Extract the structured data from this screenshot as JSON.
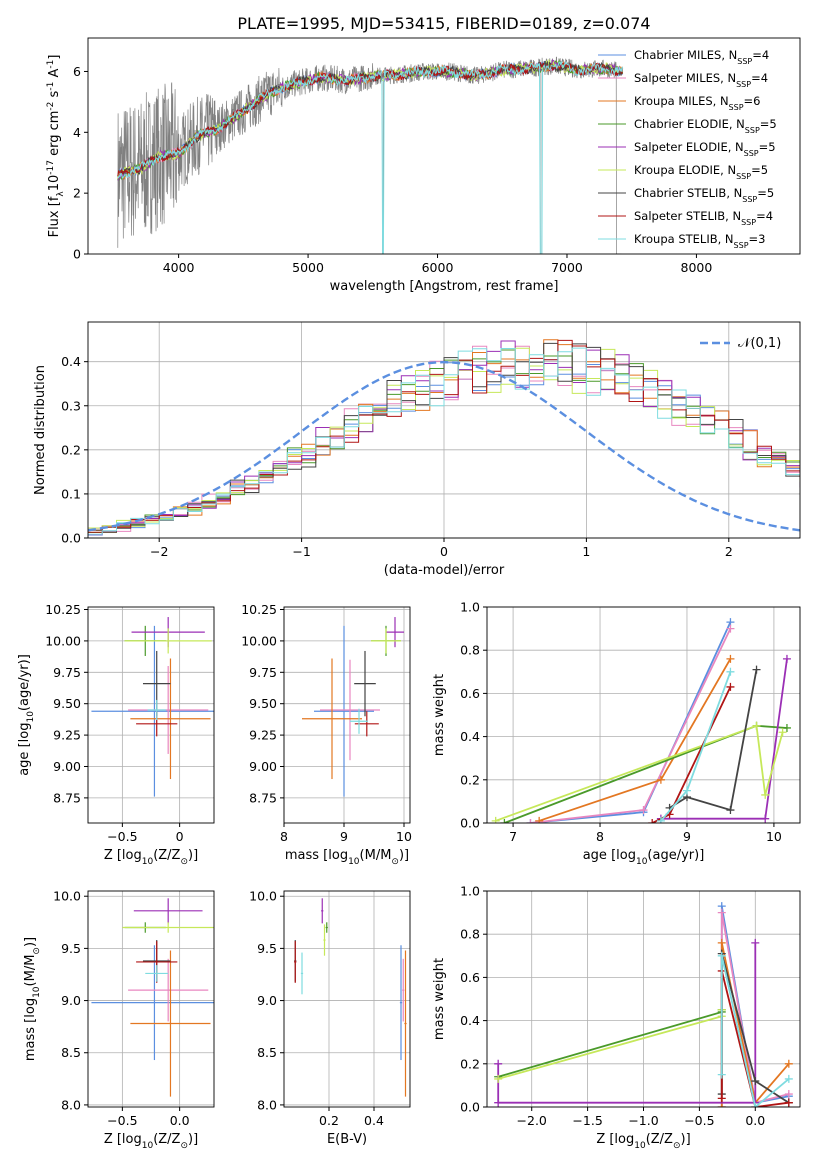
{
  "figure": {
    "title": "PLATE=1995, MJD=53415, FIBERID=0189, z=0.074"
  },
  "series_styles": [
    {
      "name": "Chabrier MILES, N$_{SSP}$=4",
      "label_main": "Chabrier MILES, N",
      "label_sub": "SSP",
      "label_tail": "=4",
      "color": "#5b8fe0"
    },
    {
      "name": "Salpeter MILES, N$_{SSP}$=4",
      "label_main": "Salpeter MILES, N",
      "label_sub": "SSP",
      "label_tail": "=4",
      "color": "#e887c0"
    },
    {
      "name": "Kroupa MILES, N$_{SSP}$=6",
      "label_main": "Kroupa MILES, N",
      "label_sub": "SSP",
      "label_tail": "=6",
      "color": "#e37722"
    },
    {
      "name": "Chabrier ELODIE, N$_{SSP}$=5",
      "label_main": "Chabrier ELODIE, N",
      "label_sub": "SSP",
      "label_tail": "=5",
      "color": "#4a9a2a"
    },
    {
      "name": "Salpeter ELODIE, N$_{SSP}$=5",
      "label_main": "Salpeter ELODIE, N",
      "label_sub": "SSP",
      "label_tail": "=5",
      "color": "#9b2fb5"
    },
    {
      "name": "Kroupa ELODIE, N$_{SSP}$=5",
      "label_main": "Kroupa ELODIE, N",
      "label_sub": "SSP",
      "label_tail": "=5",
      "color": "#c6e85a"
    },
    {
      "name": "Chabrier STELIB, N$_{SSP}$=5",
      "label_main": "Chabrier STELIB, N",
      "label_sub": "SSP",
      "label_tail": "=5",
      "color": "#444444"
    },
    {
      "name": "Salpeter STELIB, N$_{SSP}$=4",
      "label_main": "Salpeter STELIB, N",
      "label_sub": "SSP",
      "label_tail": "=4",
      "color": "#b01515"
    },
    {
      "name": "Kroupa STELIB, N$_{SSP}$=3",
      "label_main": "Kroupa STELIB, N",
      "label_sub": "SSP",
      "label_tail": "=3",
      "color": "#7fdce0"
    }
  ],
  "chart_data": [
    {
      "id": "spectrum",
      "type": "line",
      "xlabel": "wavelength [Angstrom, rest frame]",
      "ylabel": "Flux [f$_\\lambda$10$^{-17}$ erg cm$^{-2}$ s$^{-1}$ A$^{-1}$]",
      "xlim": [
        3300,
        8800
      ],
      "ylim": [
        0,
        7.1
      ],
      "xticks": [
        4000,
        5000,
        6000,
        7000,
        8000
      ],
      "yticks": [
        0,
        2,
        4,
        6
      ],
      "grid": false,
      "legend": "right",
      "data_color": "#808080",
      "model_points": {
        "x": [
          3530,
          3700,
          3850,
          4000,
          4150,
          4300,
          4500,
          4700,
          4900,
          5100,
          5300,
          5500,
          5700,
          5900,
          6100,
          6300,
          6500,
          6700,
          6900,
          7100,
          7300,
          7420
        ],
        "y": [
          2.6,
          2.8,
          3.2,
          3.3,
          3.9,
          4.1,
          4.7,
          5.3,
          5.6,
          5.8,
          5.7,
          5.85,
          5.9,
          6.0,
          6.0,
          5.85,
          6.05,
          6.1,
          6.2,
          6.05,
          6.1,
          6.0
        ]
      }
    },
    {
      "id": "residuals",
      "type": "histogram",
      "xlabel": "(data-model)/error",
      "ylabel": "Normed distribution",
      "xlim": [
        -2.5,
        2.5
      ],
      "ylim": [
        0,
        0.49
      ],
      "xticks": [
        -2,
        -1,
        0,
        1,
        2
      ],
      "yticks": [
        0.0,
        0.1,
        0.2,
        0.3,
        0.4
      ],
      "grid": true,
      "legend": "top-right",
      "bin_edges_start": -2.5,
      "bin_width": 0.1,
      "base_density": [
        0.018,
        0.022,
        0.027,
        0.033,
        0.04,
        0.048,
        0.057,
        0.068,
        0.08,
        0.093,
        0.108,
        0.123,
        0.14,
        0.157,
        0.175,
        0.194,
        0.213,
        0.232,
        0.251,
        0.27,
        0.288,
        0.306,
        0.322,
        0.337,
        0.351,
        0.363,
        0.374,
        0.383,
        0.39,
        0.395,
        0.398,
        0.399,
        0.398,
        0.395,
        0.39,
        0.383,
        0.374,
        0.363,
        0.351,
        0.337,
        0.322,
        0.306,
        0.288,
        0.27,
        0.251,
        0.232,
        0.213,
        0.194,
        0.175,
        0.157,
        0.14,
        0.123,
        0.108,
        0.093,
        0.08,
        0.068,
        0.057,
        0.048,
        0.04,
        0.033,
        0.027,
        0.022,
        0.018
      ],
      "gaussian_label": "$\\mathcal{N}(0,1)$"
    },
    {
      "id": "age-vs-Z",
      "type": "errorbar",
      "xlabel": "Z [log$_{10}$(Z/Z$_\\odot$)]",
      "ylabel": "age  [log$_{10}$(age/yr)]",
      "xlim": [
        -0.8,
        0.3
      ],
      "ylim": [
        8.55,
        10.27
      ],
      "xticks": [
        -0.5,
        0.0
      ],
      "yticks": [
        8.75,
        9.0,
        9.25,
        9.5,
        9.75,
        10.0,
        10.25
      ],
      "grid": true,
      "points": [
        {
          "x": -0.22,
          "y": 9.44,
          "xerr": 0.55,
          "yerr": 0.68
        },
        {
          "x": -0.1,
          "y": 9.45,
          "xerr": 0.35,
          "yerr": 0.35
        },
        {
          "x": -0.08,
          "y": 9.38,
          "xerr": 0.35,
          "yerr": 0.48
        },
        {
          "x": -0.3,
          "y": 10.0,
          "xerr": 0.18,
          "yerr": 0.12
        },
        {
          "x": -0.1,
          "y": 10.07,
          "xerr": 0.32,
          "yerr": 0.12
        },
        {
          "x": -0.1,
          "y": 10.0,
          "xerr": 0.38,
          "yerr": 0.1
        },
        {
          "x": -0.2,
          "y": 9.66,
          "xerr": 0.12,
          "yerr": 0.26
        },
        {
          "x": -0.2,
          "y": 9.34,
          "xerr": 0.18,
          "yerr": 0.1
        },
        {
          "x": -0.2,
          "y": 9.45,
          "xerr": 0.08,
          "yerr": 0.08
        }
      ]
    },
    {
      "id": "age-vs-mass",
      "type": "errorbar",
      "xlabel": "mass [log$_{10}$(M/M$_\\odot$)]",
      "ylabel": "",
      "xlim": [
        8.0,
        10.1
      ],
      "ylim": [
        8.55,
        10.27
      ],
      "xticks": [
        8,
        9,
        10
      ],
      "yticks": [
        8.75,
        9.0,
        9.25,
        9.5,
        9.75,
        10.0,
        10.25
      ],
      "grid": true,
      "points": [
        {
          "x": 9.0,
          "y": 9.44,
          "xerr": 0.5,
          "yerr": 0.68
        },
        {
          "x": 9.1,
          "y": 9.45,
          "xerr": 0.5,
          "yerr": 0.4
        },
        {
          "x": 8.8,
          "y": 9.38,
          "xerr": 0.5,
          "yerr": 0.48
        },
        {
          "x": 9.7,
          "y": 10.0,
          "xerr": 0.25,
          "yerr": 0.12
        },
        {
          "x": 9.85,
          "y": 10.07,
          "xerr": 0.15,
          "yerr": 0.12
        },
        {
          "x": 9.7,
          "y": 10.0,
          "xerr": 0.25,
          "yerr": 0.1
        },
        {
          "x": 9.35,
          "y": 9.66,
          "xerr": 0.18,
          "yerr": 0.26
        },
        {
          "x": 9.38,
          "y": 9.34,
          "xerr": 0.2,
          "yerr": 0.1
        },
        {
          "x": 9.25,
          "y": 9.36,
          "xerr": 0.15,
          "yerr": 0.1
        }
      ]
    },
    {
      "id": "weight-vs-age",
      "type": "line",
      "xlabel": "age  [log$_{10}$(age/yr)]",
      "ylabel": "mass weight",
      "xlim": [
        6.7,
        10.3
      ],
      "ylim": [
        0,
        1.0
      ],
      "xticks": [
        7,
        8,
        9,
        10
      ],
      "yticks": [
        0.0,
        0.2,
        0.4,
        0.6,
        0.8,
        1.0
      ],
      "grid": true,
      "lines": [
        {
          "x": [
            7.2,
            8.5,
            9.5
          ],
          "y": [
            0.0,
            0.05,
            0.93
          ]
        },
        {
          "x": [
            7.2,
            8.5,
            9.5
          ],
          "y": [
            0.0,
            0.06,
            0.9
          ]
        },
        {
          "x": [
            7.3,
            8.7,
            9.5
          ],
          "y": [
            0.01,
            0.2,
            0.76
          ]
        },
        {
          "x": [
            6.9,
            9.8,
            10.15
          ],
          "y": [
            0.0,
            0.45,
            0.44
          ]
        },
        {
          "x": [
            8.7,
            9.9,
            10.15
          ],
          "y": [
            0.02,
            0.02,
            0.76
          ]
        },
        {
          "x": [
            6.8,
            9.8,
            9.9,
            10.1
          ],
          "y": [
            0.01,
            0.45,
            0.13,
            0.42
          ]
        },
        {
          "x": [
            8.8,
            9.0,
            9.5,
            9.8
          ],
          "y": [
            0.07,
            0.12,
            0.06,
            0.71
          ]
        },
        {
          "x": [
            8.6,
            8.8,
            9.5
          ],
          "y": [
            0.0,
            0.04,
            0.63
          ]
        },
        {
          "x": [
            8.7,
            9.0,
            9.5
          ],
          "y": [
            0.01,
            0.15,
            0.7
          ]
        }
      ]
    },
    {
      "id": "mass-vs-Z",
      "type": "errorbar",
      "xlabel": "Z [log$_{10}$(Z/Z$_\\odot$)]",
      "ylabel": "mass [log$_{10}$(M/M$_\\odot$)]",
      "xlim": [
        -0.8,
        0.3
      ],
      "ylim": [
        7.98,
        10.05
      ],
      "xticks": [
        -0.5,
        0.0
      ],
      "yticks": [
        8.0,
        8.5,
        9.0,
        9.5,
        10.0
      ],
      "grid": true,
      "points": [
        {
          "x": -0.22,
          "y": 8.98,
          "xerr": 0.55,
          "yerr": 0.55
        },
        {
          "x": -0.1,
          "y": 9.1,
          "xerr": 0.35,
          "yerr": 0.3
        },
        {
          "x": -0.08,
          "y": 8.78,
          "xerr": 0.35,
          "yerr": 0.7
        },
        {
          "x": -0.3,
          "y": 9.7,
          "xerr": 0.18,
          "yerr": 0.05
        },
        {
          "x": -0.1,
          "y": 9.86,
          "xerr": 0.3,
          "yerr": 0.12
        },
        {
          "x": -0.1,
          "y": 9.7,
          "xerr": 0.4,
          "yerr": 0.05
        },
        {
          "x": -0.2,
          "y": 9.38,
          "xerr": 0.12,
          "yerr": 0.2
        },
        {
          "x": -0.2,
          "y": 9.37,
          "xerr": 0.18,
          "yerr": 0.2
        },
        {
          "x": -0.2,
          "y": 9.26,
          "xerr": 0.1,
          "yerr": 0.08
        }
      ]
    },
    {
      "id": "mass-vs-EBV",
      "type": "errorbar",
      "xlabel": "E(B-V)",
      "ylabel": "",
      "xlim": [
        0.0,
        0.56
      ],
      "ylim": [
        7.98,
        10.05
      ],
      "xticks": [
        0.2,
        0.4
      ],
      "yticks": [
        8.0,
        8.5,
        9.0,
        9.5,
        10.0
      ],
      "grid": true,
      "points": [
        {
          "x": 0.52,
          "y": 8.98,
          "xerr": 0.005,
          "yerr": 0.55
        },
        {
          "x": 0.53,
          "y": 9.1,
          "xerr": 0.005,
          "yerr": 0.3
        },
        {
          "x": 0.54,
          "y": 8.78,
          "xerr": 0.005,
          "yerr": 0.7
        },
        {
          "x": 0.19,
          "y": 9.7,
          "xerr": 0.005,
          "yerr": 0.05
        },
        {
          "x": 0.17,
          "y": 9.86,
          "xerr": 0.005,
          "yerr": 0.12
        },
        {
          "x": 0.18,
          "y": 9.58,
          "xerr": 0.005,
          "yerr": 0.15
        },
        {
          "x": 0.05,
          "y": 9.38,
          "xerr": 0.005,
          "yerr": 0.2
        },
        {
          "x": 0.05,
          "y": 9.37,
          "xerr": 0.005,
          "yerr": 0.2
        },
        {
          "x": 0.08,
          "y": 9.26,
          "xerr": 0.005,
          "yerr": 0.2
        }
      ]
    },
    {
      "id": "weight-vs-Z",
      "type": "line",
      "xlabel": "Z [log$_{10}$(Z/Z$_\\odot$)]",
      "ylabel": "mass weight",
      "xlim": [
        -2.4,
        0.4
      ],
      "ylim": [
        0,
        1.0
      ],
      "xticks": [
        -2.0,
        -1.5,
        -1.0,
        -0.5,
        0.0
      ],
      "yticks": [
        0.0,
        0.2,
        0.4,
        0.6,
        0.8,
        1.0
      ],
      "grid": true,
      "lines": [
        {
          "x": [
            -0.3,
            -0.3,
            0.0,
            0.3
          ],
          "y": [
            0.0,
            0.93,
            0.02,
            0.05
          ]
        },
        {
          "x": [
            -0.3,
            -0.3,
            0.0,
            0.3
          ],
          "y": [
            0.0,
            0.9,
            0.02,
            0.06
          ]
        },
        {
          "x": [
            -0.3,
            -0.3,
            0.0,
            0.3
          ],
          "y": [
            0.0,
            0.76,
            0.02,
            0.2
          ]
        },
        {
          "x": [
            -2.3,
            -0.3,
            -0.3
          ],
          "y": [
            0.14,
            0.44,
            0.45
          ]
        },
        {
          "x": [
            -2.3,
            -2.3,
            0.0,
            0.0
          ],
          "y": [
            0.2,
            0.02,
            0.02,
            0.76
          ]
        },
        {
          "x": [
            -2.3,
            -0.3,
            -0.3
          ],
          "y": [
            0.13,
            0.42,
            0.45
          ]
        },
        {
          "x": [
            -0.3,
            -0.3,
            0.0,
            0.3
          ],
          "y": [
            0.06,
            0.71,
            0.12,
            0.02
          ]
        },
        {
          "x": [
            -0.3,
            -0.3,
            0.0,
            0.3
          ],
          "y": [
            0.04,
            0.63,
            0.0,
            0.02
          ]
        },
        {
          "x": [
            -0.3,
            -0.3,
            0.0,
            0.3
          ],
          "y": [
            0.15,
            0.7,
            0.0,
            0.13
          ]
        }
      ]
    }
  ]
}
